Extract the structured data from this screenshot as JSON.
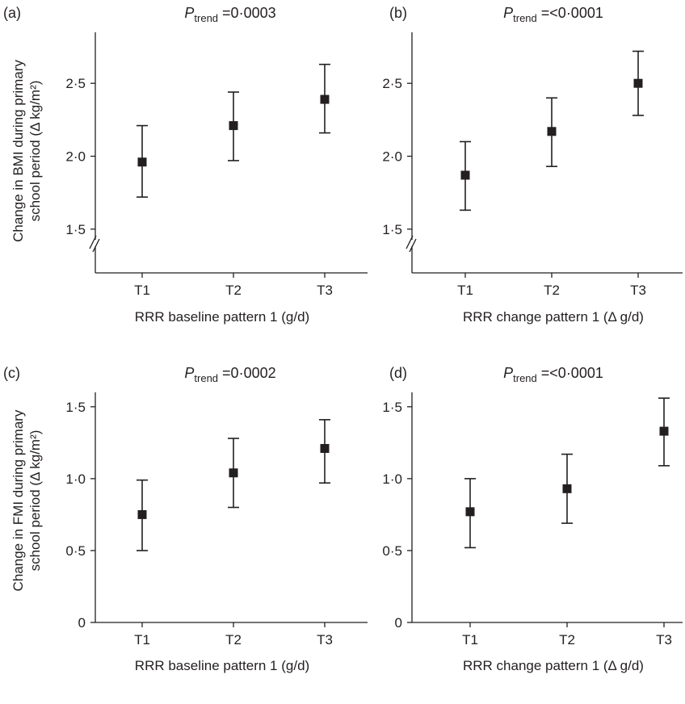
{
  "figure": {
    "ylabel_top": [
      "Change in BMI during primary",
      "school period (Δ kg/m²)"
    ],
    "ylabel_bottom": [
      "Change in FMI during primary",
      "school period (Δ kg/m²)"
    ]
  },
  "chart_data": [
    {
      "type": "scatter",
      "panel_label": "(a)",
      "p_symbol": "P",
      "p_subscript": "trend",
      "p_value": " =0·0003",
      "xlabel": "RRR baseline pattern 1 (g/d)",
      "categories": [
        "T1",
        "T2",
        "T3"
      ],
      "values": [
        1.96,
        2.21,
        2.39
      ],
      "error_low": [
        1.72,
        1.97,
        2.16
      ],
      "error_high": [
        2.21,
        2.44,
        2.63
      ],
      "ylim": [
        1.2,
        2.85
      ],
      "axis_break": true,
      "yticks": [
        1.5,
        2.0,
        2.5
      ],
      "ytick_labels": [
        "1·5",
        "2·0",
        "2·5"
      ]
    },
    {
      "type": "scatter",
      "panel_label": "(b)",
      "p_symbol": "P",
      "p_subscript": "trend",
      "p_value": " =<0·0001",
      "xlabel": "RRR change pattern 1 (Δ g/d)",
      "categories": [
        "T1",
        "T2",
        "T3"
      ],
      "values": [
        1.87,
        2.17,
        2.5
      ],
      "error_low": [
        1.63,
        1.93,
        2.28
      ],
      "error_high": [
        2.1,
        2.4,
        2.72
      ],
      "ylim": [
        1.2,
        2.85
      ],
      "axis_break": true,
      "yticks": [
        1.5,
        2.0,
        2.5
      ],
      "ytick_labels": [
        "1·5",
        "2·0",
        "2·5"
      ]
    },
    {
      "type": "scatter",
      "panel_label": "(c)",
      "p_symbol": "P",
      "p_subscript": "trend",
      "p_value": " =0·0002",
      "xlabel": "RRR baseline pattern 1 (g/d)",
      "categories": [
        "T1",
        "T2",
        "T3"
      ],
      "values": [
        0.75,
        1.04,
        1.21
      ],
      "error_low": [
        0.5,
        0.8,
        0.97
      ],
      "error_high": [
        0.99,
        1.28,
        1.41
      ],
      "ylim": [
        0,
        1.6
      ],
      "axis_break": false,
      "yticks": [
        0,
        0.5,
        1.0,
        1.5
      ],
      "ytick_labels": [
        "0",
        "0·5",
        "1·0",
        "1·5"
      ]
    },
    {
      "type": "scatter",
      "panel_label": "(d)",
      "p_symbol": "P",
      "p_subscript": "trend",
      "p_value": " =<0·0001",
      "xlabel": "RRR change pattern 1 (Δ g/d)",
      "categories": [
        "T1",
        "T2",
        "T3"
      ],
      "values": [
        0.77,
        0.93,
        1.33
      ],
      "error_low": [
        0.52,
        0.69,
        1.09
      ],
      "error_high": [
        1.0,
        1.17,
        1.56
      ],
      "ylim": [
        0,
        1.6
      ],
      "axis_break": false,
      "yticks": [
        0,
        0.5,
        1.0,
        1.5
      ],
      "ytick_labels": [
        "0",
        "0·5",
        "1·0",
        "1·5"
      ]
    }
  ]
}
